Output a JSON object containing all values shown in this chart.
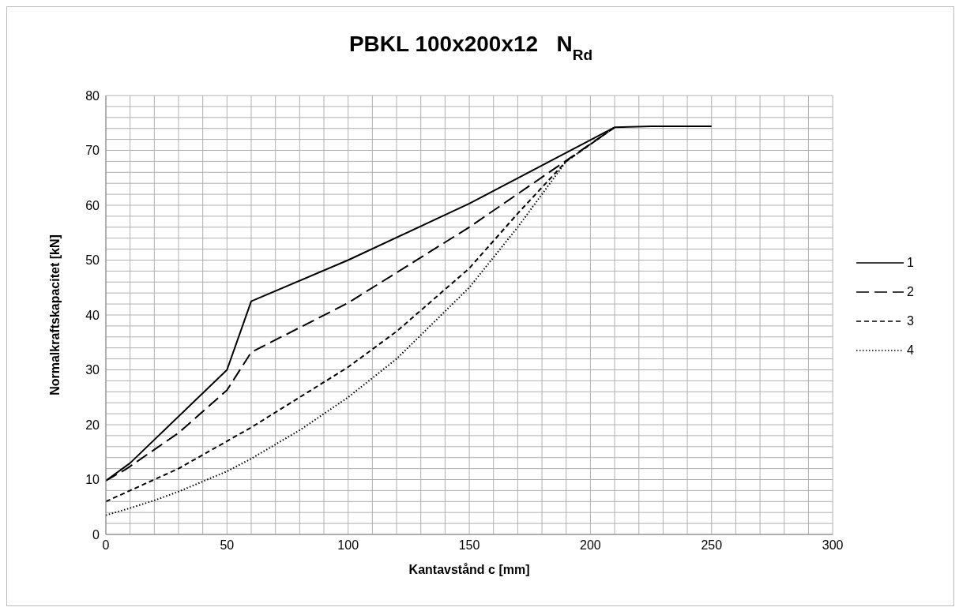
{
  "chart_data": {
    "type": "line",
    "title": "PBKL 100x200x12   N$_{Rd}$",
    "xlabel": "Kantavstånd c [mm]",
    "ylabel": "Normalkraftskapacitet [kN]",
    "xlim": [
      0,
      300
    ],
    "xticks": [
      0,
      {
        "value": 10,
        "label": null
      },
      {
        "value": 20,
        "label": null
      },
      {
        "value": 30,
        "label": null
      },
      {
        "value": 40,
        "label": null
      },
      50,
      {
        "value": 60,
        "label": null
      },
      {
        "value": 70,
        "label": null
      },
      {
        "value": 80,
        "label": null
      },
      {
        "value": 90,
        "label": null
      },
      100,
      {
        "value": 110,
        "label": null
      },
      {
        "value": 120,
        "label": null
      },
      {
        "value": 130,
        "label": null
      },
      {
        "value": 140,
        "label": null
      },
      150,
      {
        "value": 160,
        "label": null
      },
      {
        "value": 170,
        "label": null
      },
      {
        "value": 180,
        "label": null
      },
      {
        "value": 190,
        "label": null
      },
      200,
      {
        "value": 210,
        "label": null
      },
      {
        "value": 220,
        "label": null
      },
      {
        "value": 230,
        "label": null
      },
      {
        "value": 240,
        "label": null
      },
      250,
      {
        "value": 260,
        "label": null
      },
      {
        "value": 270,
        "label": null
      },
      {
        "value": 280,
        "label": null
      },
      {
        "value": 290,
        "label": null
      },
      300
    ],
    "ylim": [
      0,
      80
    ],
    "yticks": [
      0,
      {
        "value": 2,
        "label": null
      },
      {
        "value": 4,
        "label": null
      },
      {
        "value": 6,
        "label": null
      },
      {
        "value": 8,
        "label": null
      },
      10,
      {
        "value": 12,
        "label": null
      },
      {
        "value": 14,
        "label": null
      },
      {
        "value": 16,
        "label": null
      },
      {
        "value": 18,
        "label": null
      },
      20,
      {
        "value": 22,
        "label": null
      },
      {
        "value": 24,
        "label": null
      },
      {
        "value": 26,
        "label": null
      },
      {
        "value": 28,
        "label": null
      },
      30,
      {
        "value": 32,
        "label": null
      },
      {
        "value": 34,
        "label": null
      },
      {
        "value": 36,
        "label": null
      },
      {
        "value": 38,
        "label": null
      },
      40,
      {
        "value": 42,
        "label": null
      },
      {
        "value": 44,
        "label": null
      },
      {
        "value": 46,
        "label": null
      },
      {
        "value": 48,
        "label": null
      },
      50,
      {
        "value": 52,
        "label": null
      },
      {
        "value": 54,
        "label": null
      },
      {
        "value": 56,
        "label": null
      },
      {
        "value": 58,
        "label": null
      },
      60,
      {
        "value": 62,
        "label": null
      },
      {
        "value": 64,
        "label": null
      },
      {
        "value": 66,
        "label": null
      },
      {
        "value": 68,
        "label": null
      },
      70,
      {
        "value": 72,
        "label": null
      },
      {
        "value": 74,
        "label": null
      },
      {
        "value": 76,
        "label": null
      },
      {
        "value": 78,
        "label": null
      },
      80
    ],
    "grid": true,
    "legend": "right",
    "marker": "none",
    "series": [
      {
        "name": "1",
        "color": "#000000",
        "line_style": "solid",
        "x": [
          0,
          10,
          50,
          60,
          100,
          150,
          210,
          225,
          250
        ],
        "values": [
          9.8,
          13,
          30,
          42.5,
          50,
          60.3,
          74.2,
          74.4,
          74.4
        ]
      },
      {
        "name": "2",
        "color": "#000000",
        "line_style": "longdash",
        "x": [
          0,
          8,
          30,
          50,
          60,
          100,
          150,
          210
        ],
        "values": [
          9.8,
          11.8,
          18.5,
          26.3,
          33.2,
          42.2,
          56,
          74.2
        ]
      },
      {
        "name": "3",
        "color": "#000000",
        "line_style": "dashed",
        "x": [
          0,
          10,
          30,
          50,
          60,
          80,
          100,
          120,
          150,
          170,
          190,
          210
        ],
        "values": [
          6,
          8,
          12,
          17,
          19.5,
          25,
          30.5,
          37,
          48.5,
          58.5,
          68,
          74.2
        ]
      },
      {
        "name": "4",
        "color": "#000000",
        "line_style": "dotted",
        "x": [
          0,
          10,
          20,
          30,
          50,
          60,
          80,
          100,
          120,
          150,
          170,
          190,
          210
        ],
        "values": [
          3.5,
          4.8,
          6.2,
          7.8,
          11.5,
          13.8,
          19,
          25,
          32,
          45,
          56,
          68,
          74.2
        ]
      }
    ]
  }
}
